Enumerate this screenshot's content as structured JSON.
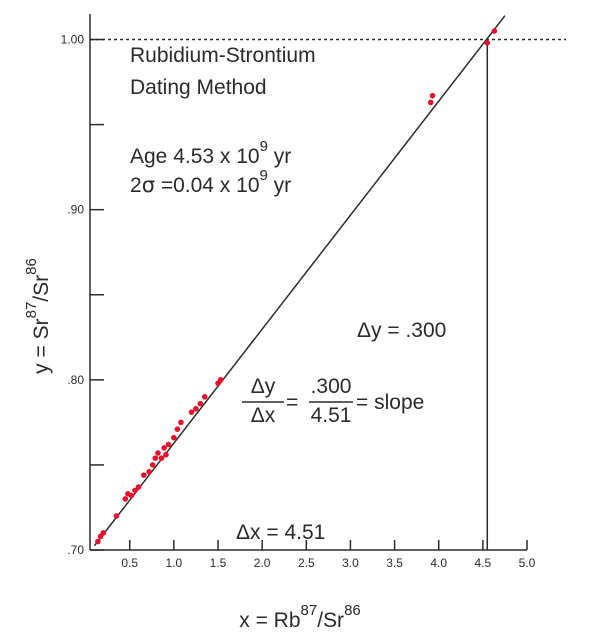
{
  "chart_data": {
    "type": "scatter",
    "title_lines": [
      "Rubidium-Strontium",
      "Dating Method"
    ],
    "age": {
      "line1_prefix": "Age 4.53 x 10",
      "line1_exp": "9",
      "line1_suffix": " yr",
      "line2_prefix": "2",
      "line2_symbol": "σ",
      "line2_mid": " =0.04 x 10",
      "line2_exp": "9",
      "line2_suffix": " yr"
    },
    "xlabel": {
      "prefix": "x = Rb",
      "sup1": "87",
      "mid": "/Sr",
      "sup2": "86"
    },
    "ylabel": {
      "prefix": "y = Sr",
      "sup1": "87",
      "mid": "/Sr",
      "sup2": "86"
    },
    "xlim": [
      0.05,
      5.0
    ],
    "ylim": [
      0.7,
      1.015
    ],
    "x_ticks": [
      {
        "value": 0.5,
        "label": "0.5"
      },
      {
        "value": 1.0,
        "label": "1.0"
      },
      {
        "value": 1.5,
        "label": "1.5"
      },
      {
        "value": 2.0,
        "label": "2.0"
      },
      {
        "value": 2.5,
        "label": "2.5"
      },
      {
        "value": 3.0,
        "label": "3.0"
      },
      {
        "value": 3.5,
        "label": "3.5"
      },
      {
        "value": 4.0,
        "label": "4.0"
      },
      {
        "value": 4.5,
        "label": "4.5"
      },
      {
        "value": 5.0,
        "label": "5.0"
      }
    ],
    "y_ticks": [
      {
        "value": 0.7,
        "label": ".70"
      },
      {
        "value": 0.75,
        "label": ""
      },
      {
        "value": 0.8,
        "label": ".80"
      },
      {
        "value": 0.85,
        "label": ""
      },
      {
        "value": 0.9,
        "label": ".90"
      },
      {
        "value": 0.95,
        "label": ""
      },
      {
        "value": 1.0,
        "label": "1.00"
      }
    ],
    "fit_line": {
      "x0": 0.1,
      "y0": 0.7025,
      "x1": 4.75,
      "y1": 1.014
    },
    "reference_lines": {
      "y_value": 1.0,
      "x_value": 4.55,
      "style": "y dashed, x solid"
    },
    "annotations": {
      "delta_y": "Δy = .300",
      "delta_x": "Δx = 4.51",
      "slope_frac1_num": "Δy",
      "slope_frac1_den": "Δx",
      "slope_eq": "=",
      "slope_frac2_num": ".300",
      "slope_frac2_den": "4.51",
      "slope_tail": "= slope"
    },
    "points": [
      {
        "x": 0.14,
        "y": 0.705
      },
      {
        "x": 0.17,
        "y": 0.708
      },
      {
        "x": 0.2,
        "y": 0.71
      },
      {
        "x": 0.35,
        "y": 0.72
      },
      {
        "x": 0.45,
        "y": 0.73
      },
      {
        "x": 0.48,
        "y": 0.733
      },
      {
        "x": 0.52,
        "y": 0.732
      },
      {
        "x": 0.56,
        "y": 0.735
      },
      {
        "x": 0.6,
        "y": 0.737
      },
      {
        "x": 0.66,
        "y": 0.744
      },
      {
        "x": 0.72,
        "y": 0.746
      },
      {
        "x": 0.76,
        "y": 0.75
      },
      {
        "x": 0.79,
        "y": 0.754
      },
      {
        "x": 0.82,
        "y": 0.757
      },
      {
        "x": 0.86,
        "y": 0.754
      },
      {
        "x": 0.89,
        "y": 0.76
      },
      {
        "x": 0.91,
        "y": 0.756
      },
      {
        "x": 0.94,
        "y": 0.762
      },
      {
        "x": 1.0,
        "y": 0.766
      },
      {
        "x": 1.04,
        "y": 0.771
      },
      {
        "x": 1.08,
        "y": 0.775
      },
      {
        "x": 1.2,
        "y": 0.781
      },
      {
        "x": 1.25,
        "y": 0.783
      },
      {
        "x": 1.3,
        "y": 0.786
      },
      {
        "x": 1.35,
        "y": 0.79
      },
      {
        "x": 1.5,
        "y": 0.798
      },
      {
        "x": 1.53,
        "y": 0.8
      },
      {
        "x": 3.91,
        "y": 0.963
      },
      {
        "x": 3.93,
        "y": 0.967
      },
      {
        "x": 4.55,
        "y": 0.998
      },
      {
        "x": 4.63,
        "y": 1.005
      }
    ],
    "grid": false,
    "colors": {
      "points": "#e8102a",
      "axes": "#2b2b2b",
      "text": "#2b2b2b"
    }
  }
}
